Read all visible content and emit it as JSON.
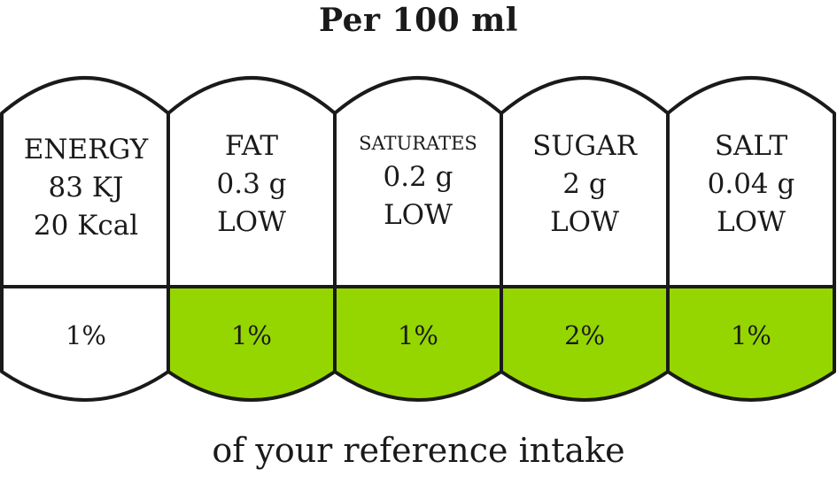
{
  "title": "Per 100 ml",
  "footer": "of your reference intake",
  "colors": {
    "low": "#95d600",
    "outline": "#1a1a1a",
    "neutral": "#ffffff"
  },
  "nutrients": [
    {
      "name": "ENERGY",
      "line2": "83 KJ",
      "line3": "20 Kcal",
      "percent": "1%",
      "level_color": "neutral"
    },
    {
      "name": "FAT",
      "line2": "0.3 g",
      "line3": "LOW",
      "percent": "1%",
      "level_color": "low"
    },
    {
      "name": "SATURATES",
      "line2": "0.2 g",
      "line3": "LOW",
      "percent": "1%",
      "level_color": "low"
    },
    {
      "name": "SUGAR",
      "line2": "2 g",
      "line3": "LOW",
      "percent": "2%",
      "level_color": "low"
    },
    {
      "name": "SALT",
      "line2": "0.04 g",
      "line3": "LOW",
      "percent": "1%",
      "level_color": "low"
    }
  ]
}
